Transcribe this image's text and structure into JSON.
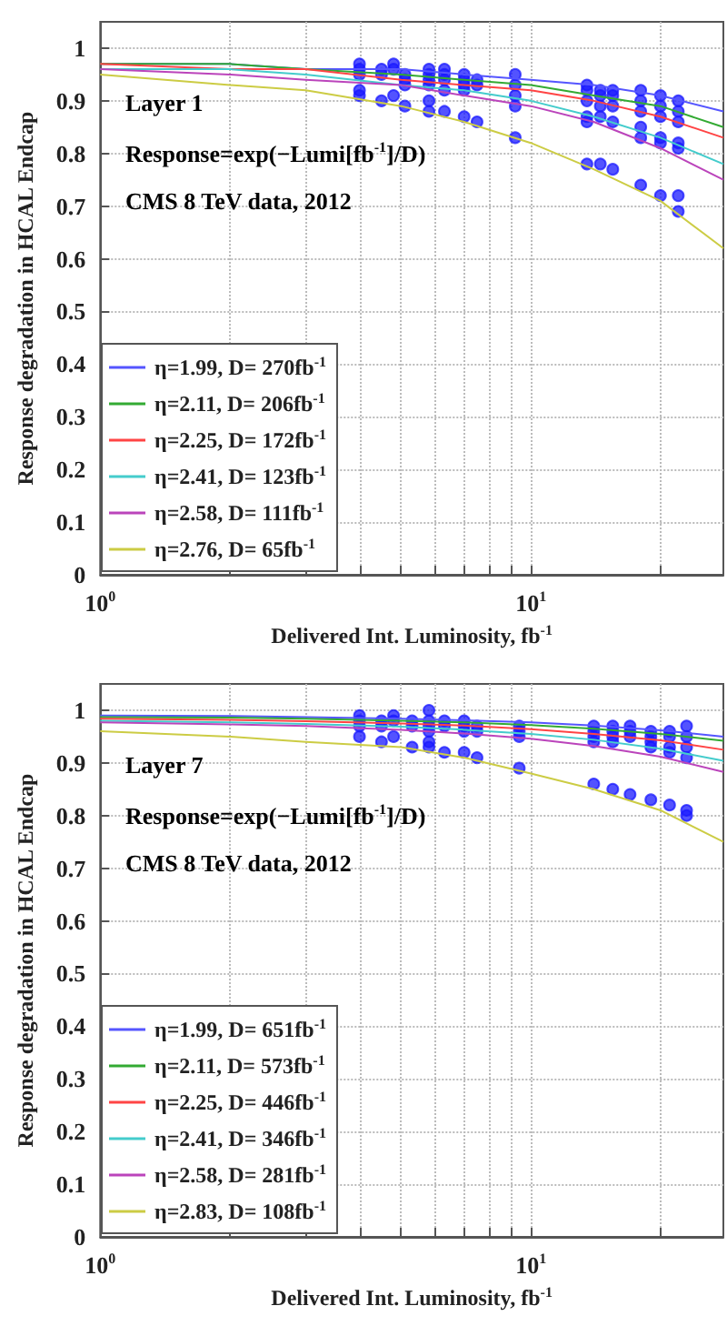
{
  "chart_data": [
    {
      "type": "line",
      "xlabel": "Delivered Int. Luminosity, fb$^{-1}$",
      "ylabel": "Response degradation in HCAL Endcap",
      "annotations": [
        "Layer 1",
        "Response=exp(−Lumi[fb$^{-1}$]/D)",
        "CMS 8 TeV data, 2012"
      ],
      "log": "x",
      "grid": true,
      "legend": "bottom left",
      "xlim": [
        1,
        28
      ],
      "ylim": [
        0,
        1.05
      ],
      "xticks": [
        {
          "value": 1,
          "label": "10$^{0}$"
        },
        {
          "value": 2,
          "label": null
        },
        {
          "value": 3,
          "label": null
        },
        {
          "value": 4,
          "label": null
        },
        {
          "value": 5,
          "label": null
        },
        {
          "value": 6,
          "label": null
        },
        {
          "value": 7,
          "label": null
        },
        {
          "value": 8,
          "label": null
        },
        {
          "value": 9,
          "label": null
        },
        {
          "value": 10,
          "label": "10$^{1}$"
        },
        {
          "value": 20,
          "label": null
        }
      ],
      "yticks": [
        0,
        0.1,
        0.2,
        0.3,
        0.4,
        0.5,
        0.6,
        0.7,
        0.8,
        0.9,
        1
      ],
      "series": [
        {
          "name": "η=1.99, D= 270fb$^{-1}$",
          "color": "#5555ff",
          "marker": "none",
          "x": [
            1,
            2,
            3,
            5,
            7,
            10,
            14,
            20,
            28
          ],
          "values": [
            0.97,
            0.97,
            0.96,
            0.96,
            0.95,
            0.94,
            0.93,
            0.91,
            0.88
          ]
        },
        {
          "name": "η=2.11, D= 206fb$^{-1}$",
          "color": "#33aa33",
          "marker": "none",
          "x": [
            1,
            2,
            3,
            5,
            7,
            10,
            14,
            20,
            28
          ],
          "values": [
            0.97,
            0.97,
            0.96,
            0.95,
            0.94,
            0.93,
            0.91,
            0.89,
            0.85
          ]
        },
        {
          "name": "η=2.25, D= 172fb$^{-1}$",
          "color": "#ff4444",
          "marker": "none",
          "x": [
            1,
            2,
            3,
            5,
            7,
            10,
            14,
            20,
            28
          ],
          "values": [
            0.97,
            0.96,
            0.96,
            0.94,
            0.93,
            0.92,
            0.9,
            0.87,
            0.83
          ]
        },
        {
          "name": "η=2.41, D= 123fb$^{-1}$",
          "color": "#44cccc",
          "marker": "none",
          "x": [
            1,
            2,
            3,
            5,
            7,
            10,
            14,
            20,
            28
          ],
          "values": [
            0.96,
            0.96,
            0.95,
            0.93,
            0.92,
            0.9,
            0.87,
            0.83,
            0.78
          ]
        },
        {
          "name": "η=2.58, D= 111fb$^{-1}$",
          "color": "#bb44bb",
          "marker": "none",
          "x": [
            1,
            2,
            3,
            5,
            7,
            10,
            14,
            20,
            28
          ],
          "values": [
            0.96,
            0.95,
            0.94,
            0.93,
            0.91,
            0.89,
            0.86,
            0.81,
            0.75
          ]
        },
        {
          "name": "η=2.76, D= 65fb$^{-1}$",
          "color": "#cccc44",
          "marker": "none",
          "x": [
            1,
            2,
            3,
            5,
            7,
            10,
            14,
            20,
            28
          ],
          "values": [
            0.95,
            0.93,
            0.92,
            0.89,
            0.86,
            0.82,
            0.77,
            0.71,
            0.62
          ]
        },
        {
          "type": "scatter",
          "color": "#1a1aff",
          "marker": "circle",
          "x": [
            4,
            4,
            4,
            4,
            4,
            4.5,
            4.5,
            4.5,
            4.8,
            4.8,
            4.8,
            5.1,
            5.1,
            5.1,
            5.1,
            5.8,
            5.8,
            5.8,
            5.8,
            5.8,
            5.8,
            6.3,
            6.3,
            6.3,
            6.3,
            6.3,
            7,
            7,
            7,
            7,
            7,
            7.5,
            7.5,
            7.5,
            9.2,
            9.2,
            9.2,
            9.2,
            9.2,
            13.5,
            13.5,
            13.5,
            13.5,
            13.5,
            13.5,
            14.5,
            14.5,
            14.5,
            14.5,
            14.5,
            15.5,
            15.5,
            15.5,
            15.5,
            15.5,
            18,
            18,
            18,
            18,
            18,
            18,
            20,
            20,
            20,
            20,
            20,
            20,
            22,
            22,
            22,
            22,
            22,
            22,
            22
          ],
          "values": [
            0.97,
            0.96,
            0.95,
            0.92,
            0.91,
            0.96,
            0.95,
            0.9,
            0.97,
            0.96,
            0.91,
            0.95,
            0.94,
            0.93,
            0.89,
            0.96,
            0.95,
            0.94,
            0.93,
            0.9,
            0.88,
            0.96,
            0.95,
            0.94,
            0.92,
            0.88,
            0.95,
            0.94,
            0.93,
            0.92,
            0.87,
            0.94,
            0.93,
            0.86,
            0.95,
            0.93,
            0.91,
            0.89,
            0.83,
            0.93,
            0.92,
            0.9,
            0.87,
            0.86,
            0.78,
            0.92,
            0.91,
            0.89,
            0.87,
            0.78,
            0.92,
            0.91,
            0.89,
            0.86,
            0.77,
            0.92,
            0.9,
            0.88,
            0.85,
            0.83,
            0.74,
            0.91,
            0.89,
            0.87,
            0.83,
            0.82,
            0.72,
            0.9,
            0.88,
            0.86,
            0.82,
            0.81,
            0.72,
            0.69
          ]
        }
      ]
    },
    {
      "type": "line",
      "xlabel": "Delivered Int. Luminosity, fb$^{-1}$",
      "ylabel": "Response degradation in HCAL Endcap",
      "annotations": [
        "Layer 7",
        "Response=exp(−Lumi[fb$^{-1}$]/D)",
        "CMS 8 TeV data, 2012"
      ],
      "log": "x",
      "grid": true,
      "legend": "bottom left",
      "xlim": [
        1,
        28
      ],
      "ylim": [
        0,
        1.05
      ],
      "xticks": [
        {
          "value": 1,
          "label": "10$^{0}$"
        },
        {
          "value": 2,
          "label": null
        },
        {
          "value": 3,
          "label": null
        },
        {
          "value": 4,
          "label": null
        },
        {
          "value": 5,
          "label": null
        },
        {
          "value": 6,
          "label": null
        },
        {
          "value": 7,
          "label": null
        },
        {
          "value": 8,
          "label": null
        },
        {
          "value": 9,
          "label": null
        },
        {
          "value": 10,
          "label": "10$^{1}$"
        },
        {
          "value": 20,
          "label": null
        }
      ],
      "yticks": [
        0,
        0.1,
        0.2,
        0.3,
        0.4,
        0.5,
        0.6,
        0.7,
        0.8,
        0.9,
        1
      ],
      "series": [
        {
          "name": "η=1.99, D= 651fb$^{-1}$",
          "color": "#5555ff",
          "marker": "none",
          "x": [
            1,
            2,
            3,
            5,
            7,
            10,
            14,
            20,
            28
          ],
          "values": [
            0.99,
            0.989,
            0.987,
            0.984,
            0.981,
            0.977,
            0.971,
            0.962,
            0.95
          ]
        },
        {
          "name": "η=2.11, D= 573fb$^{-1}$",
          "color": "#33aa33",
          "marker": "none",
          "x": [
            1,
            2,
            3,
            5,
            7,
            10,
            14,
            20,
            28
          ],
          "values": [
            0.987,
            0.986,
            0.984,
            0.98,
            0.977,
            0.972,
            0.965,
            0.955,
            0.942
          ]
        },
        {
          "name": "η=2.25, D= 446fb$^{-1}$",
          "color": "#ff4444",
          "marker": "none",
          "x": [
            1,
            2,
            3,
            5,
            7,
            10,
            14,
            20,
            28
          ],
          "values": [
            0.984,
            0.982,
            0.979,
            0.975,
            0.971,
            0.964,
            0.955,
            0.943,
            0.925
          ]
        },
        {
          "name": "η=2.41, D= 346fb$^{-1}$",
          "color": "#44cccc",
          "marker": "none",
          "x": [
            1,
            2,
            3,
            5,
            7,
            10,
            14,
            20,
            28
          ],
          "values": [
            0.98,
            0.977,
            0.974,
            0.969,
            0.963,
            0.955,
            0.944,
            0.927,
            0.904
          ]
        },
        {
          "name": "η=2.58, D= 281fb$^{-1}$",
          "color": "#bb44bb",
          "marker": "none",
          "x": [
            1,
            2,
            3,
            5,
            7,
            10,
            14,
            20,
            28
          ],
          "values": [
            0.977,
            0.973,
            0.97,
            0.963,
            0.956,
            0.946,
            0.932,
            0.912,
            0.883
          ]
        },
        {
          "name": "η=2.83, D= 108fb$^{-1}$",
          "color": "#cccc44",
          "marker": "none",
          "x": [
            1,
            2,
            3,
            5,
            7,
            10,
            14,
            20,
            28
          ],
          "values": [
            0.96,
            0.95,
            0.94,
            0.93,
            0.91,
            0.88,
            0.85,
            0.81,
            0.75
          ]
        },
        {
          "type": "scatter",
          "color": "#1a1aff",
          "marker": "circle",
          "x": [
            4,
            4,
            4,
            4,
            4.5,
            4.5,
            4.5,
            4.8,
            4.8,
            4.8,
            5.3,
            5.3,
            5.3,
            5.8,
            5.8,
            5.8,
            5.8,
            5.8,
            5.8,
            6.3,
            6.3,
            6.3,
            7,
            7,
            7,
            7,
            7.5,
            7.5,
            7.5,
            9.4,
            9.4,
            9.4,
            9.4,
            14,
            14,
            14,
            14,
            14,
            15.5,
            15.5,
            15.5,
            15.5,
            15.5,
            17,
            17,
            17,
            17,
            19,
            19,
            19,
            19,
            19,
            21,
            21,
            21,
            21,
            21,
            23,
            23,
            23,
            23,
            23,
            23
          ],
          "values": [
            0.99,
            0.98,
            0.97,
            0.95,
            0.98,
            0.97,
            0.94,
            0.99,
            0.98,
            0.95,
            0.98,
            0.97,
            0.93,
            1.0,
            0.98,
            0.97,
            0.96,
            0.94,
            0.93,
            0.98,
            0.97,
            0.92,
            0.98,
            0.97,
            0.96,
            0.92,
            0.97,
            0.96,
            0.91,
            0.97,
            0.96,
            0.95,
            0.89,
            0.97,
            0.96,
            0.95,
            0.94,
            0.86,
            0.97,
            0.96,
            0.95,
            0.94,
            0.85,
            0.97,
            0.96,
            0.95,
            0.84,
            0.96,
            0.95,
            0.94,
            0.93,
            0.83,
            0.96,
            0.95,
            0.93,
            0.92,
            0.82,
            0.97,
            0.95,
            0.93,
            0.91,
            0.81,
            0.8
          ]
        }
      ]
    }
  ]
}
